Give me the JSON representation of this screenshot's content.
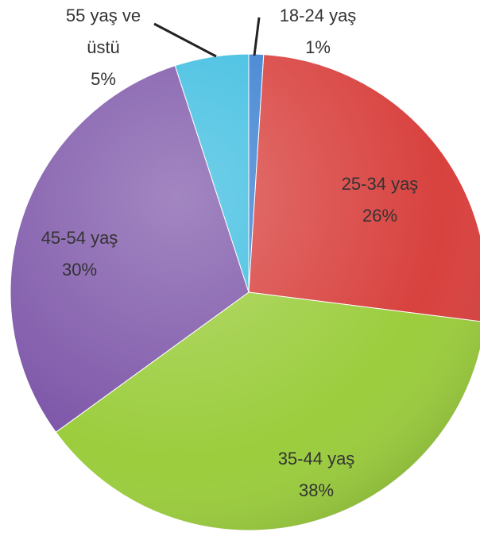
{
  "chart_data": {
    "type": "pie",
    "categories": [
      "18-24 yaş",
      "25-34 yaş",
      "35-44 yaş",
      "45-54 yaş",
      "55 yaş ve üstü"
    ],
    "values": [
      1,
      26,
      38,
      30,
      5
    ],
    "value_labels": [
      "1%",
      "26%",
      "38%",
      "30%",
      "5%"
    ],
    "colors": [
      "#3b7fd1",
      "#d8413e",
      "#9bcd3d",
      "#7e57a9",
      "#3cbde0"
    ]
  }
}
